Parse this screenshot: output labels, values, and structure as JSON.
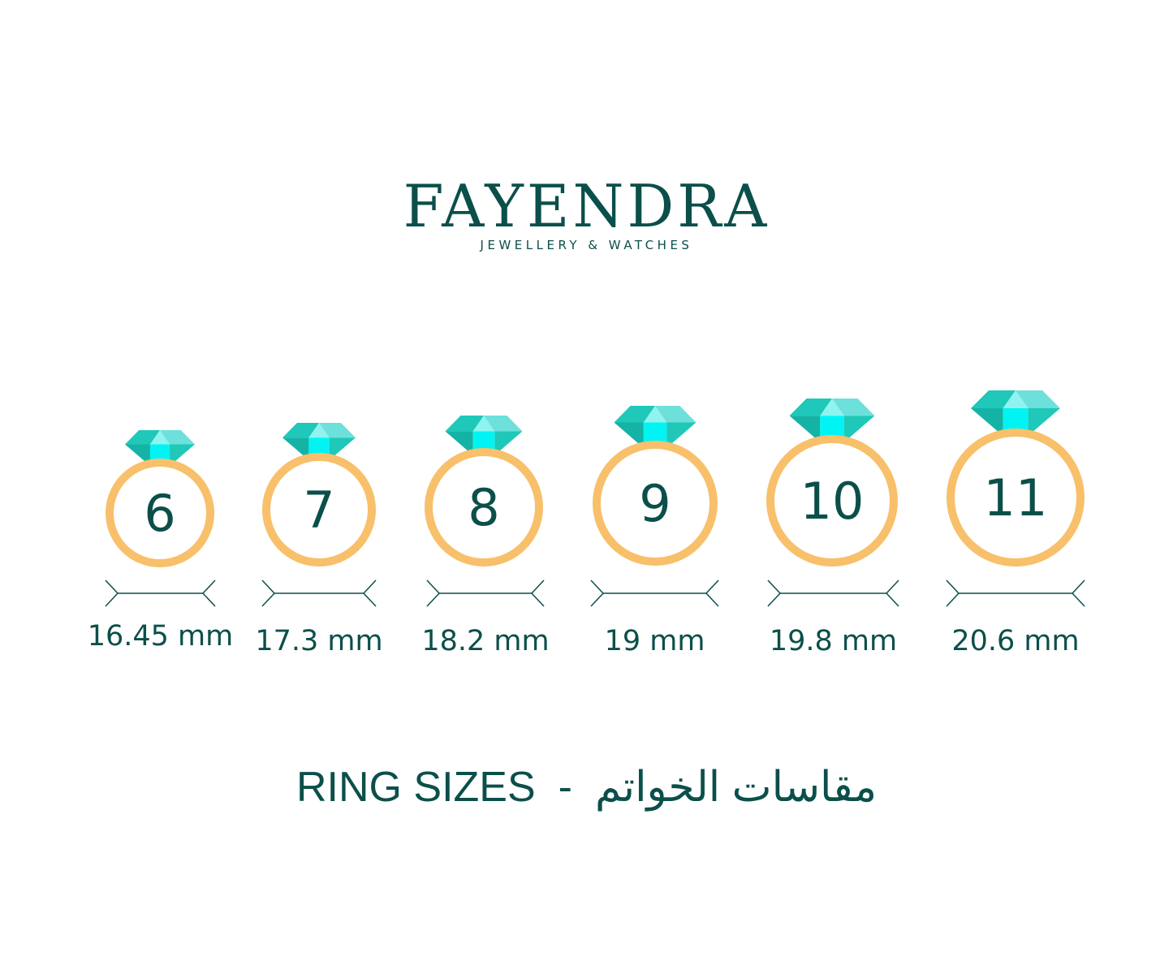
{
  "brand": {
    "name": "FAYENDRA",
    "tagline": "JEWELLERY & WATCHES"
  },
  "colors": {
    "text": "#0b4f4a",
    "ring": "#f8c06a",
    "gem_light": "#6de0dc",
    "gem_mid": "#1fc8b8",
    "gem_dark": "#14b3a6",
    "gem_center": "#00f4f4"
  },
  "rings": [
    {
      "size": "6",
      "diameter": "16.45 mm"
    },
    {
      "size": "7",
      "diameter": "17.3 mm"
    },
    {
      "size": "8",
      "diameter": "18.2 mm"
    },
    {
      "size": "9",
      "diameter": "19 mm"
    },
    {
      "size": "10",
      "diameter": "19.8 mm"
    },
    {
      "size": "11",
      "diameter": "20.6 mm"
    }
  ],
  "title": {
    "english": "RING SIZES",
    "separator": "-",
    "arabic": "مقاسات الخواتم"
  }
}
